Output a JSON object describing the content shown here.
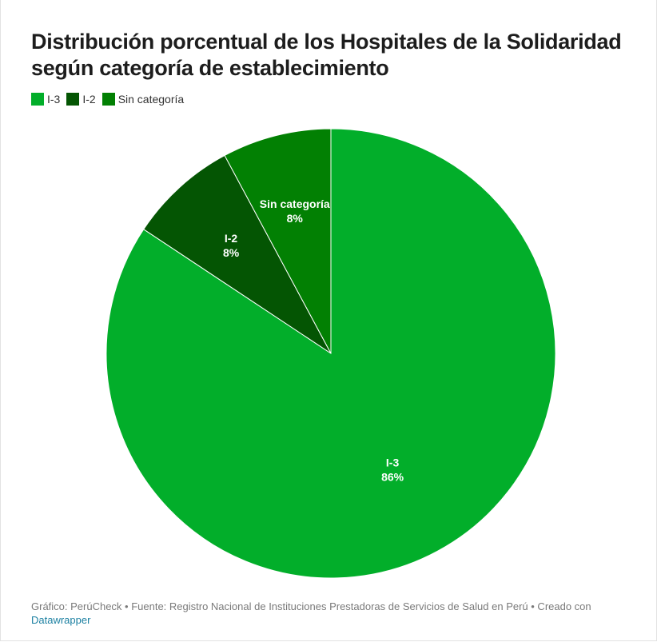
{
  "title": "Distribución porcentual de los Hospitales de la Solidaridad según categoría de establecimiento",
  "legend": [
    {
      "label": "I-3",
      "color": "#02ae2a"
    },
    {
      "label": "I-2",
      "color": "#045503"
    },
    {
      "label": "Sin categoría",
      "color": "#028003"
    }
  ],
  "chart_data": {
    "type": "pie",
    "title": "Distribución porcentual de los Hospitales de la Solidaridad según categoría de establecimiento",
    "slices": [
      {
        "label": "I-3",
        "value": 86,
        "value_label": "86%",
        "color": "#02ae2a"
      },
      {
        "label": "I-2",
        "value": 8,
        "value_label": "8%",
        "color": "#045503"
      },
      {
        "label": "Sin categoría",
        "value": 8,
        "value_label": "8%",
        "color": "#028003"
      }
    ],
    "start": "12 o'clock",
    "direction": "clockwise",
    "legend_position": "top-left"
  },
  "footer": {
    "text": "Gráfico: PerúCheck • Fuente: Registro Nacional de Instituciones Prestadoras de Servicios de Salud en Perú • Creado con",
    "link": "Datawrapper"
  }
}
